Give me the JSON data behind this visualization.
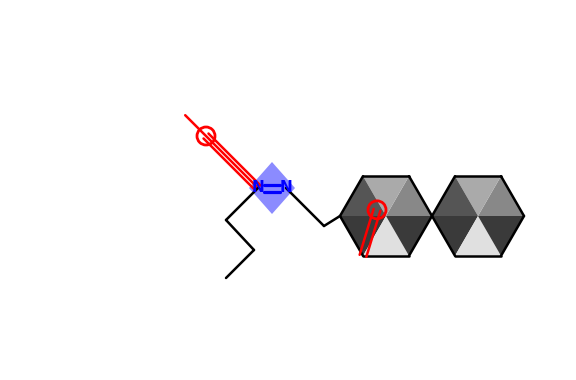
{
  "bg_color": "#ffffff",
  "bond_color": "#000000",
  "n_color": "#0000ff",
  "o_color": "#ff0000",
  "lw": 1.8,
  "fig_width": 5.76,
  "fig_height": 3.8,
  "dpi": 100,
  "hex_dark1": "#3a3a3a",
  "hex_dark2": "#555555",
  "hex_light": "#cccccc",
  "hex_mid": "#888888",
  "n_highlight": "#7777ff"
}
